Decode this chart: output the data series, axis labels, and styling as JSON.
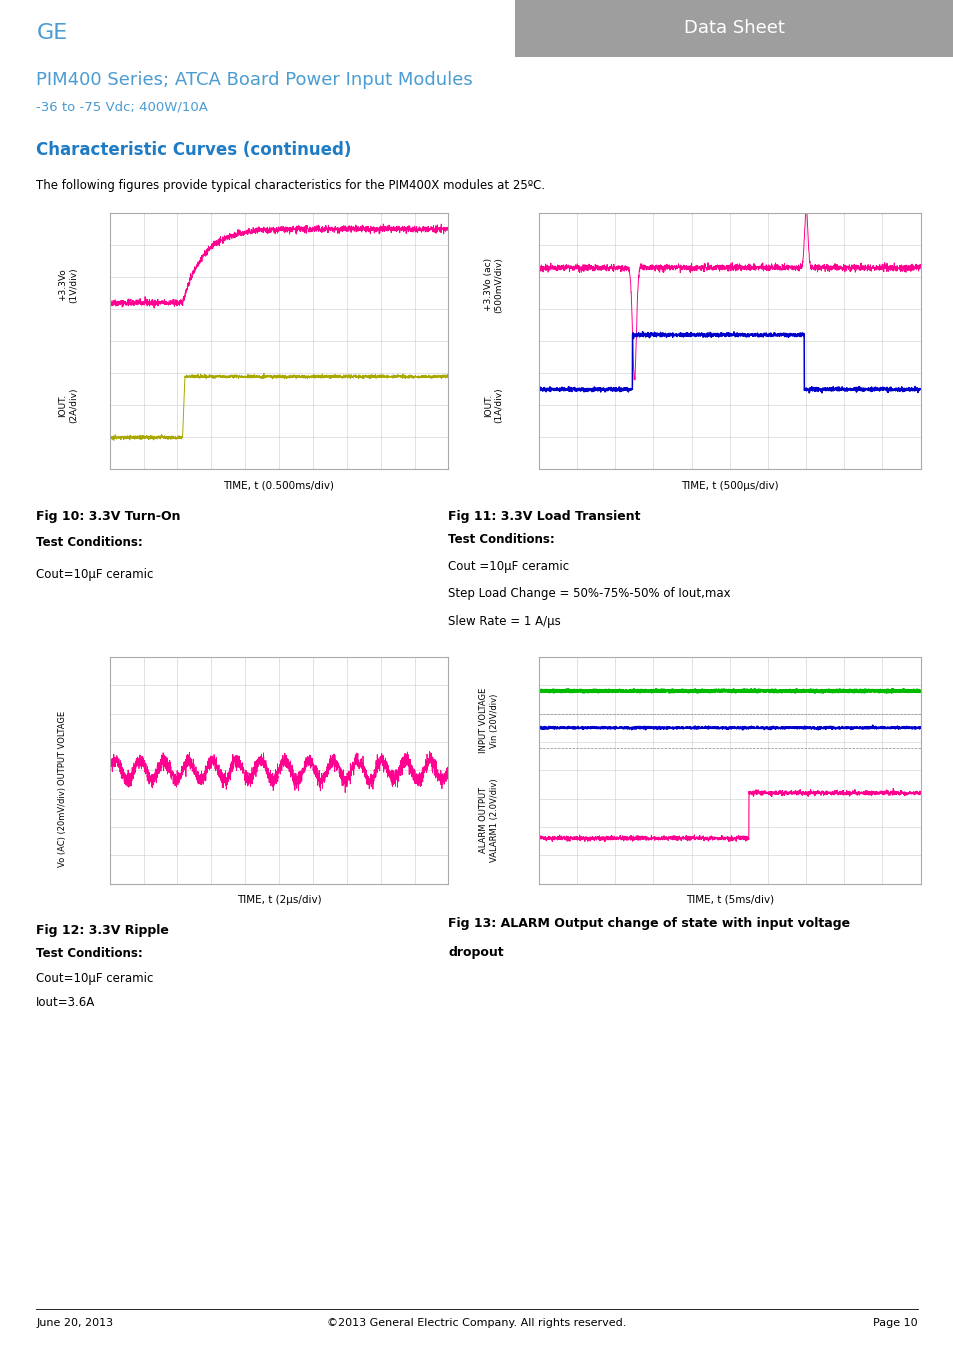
{
  "page_title": "GE",
  "datasheet_label": "Data Sheet",
  "product_title": "PIM400 Series; ATCA Board Power Input Modules",
  "product_subtitle": "-36 to -75 Vdc; 400W/10A",
  "section_title": "Characteristic Curves (continued)",
  "intro_text": "The following figures provide typical characteristics for the PIM400X modules at 25ºC.",
  "fig10_title": "Fig 10: 3.3V Turn-On",
  "fig10_xlabel": "TIME, t (0.500ms/div)",
  "fig10_ylabel_top": "+3.3Vo\n(1V/div)",
  "fig10_ylabel_bot": "IOUT.\n(2A/div)",
  "fig10_cond1": "Test Conditions:",
  "fig10_cond2": "Cout=10μF ceramic",
  "fig11_title": "Fig 11: 3.3V Load Transient",
  "fig11_xlabel": "TIME, t (500μs/div)",
  "fig11_ylabel_top": "+3.3Vo (ac)\n(500mV/div)",
  "fig11_ylabel_bot": "IOUT.\n(1A/div)",
  "fig11_cond1": "Test Conditions:",
  "fig11_cond2": "Cout =10μF ceramic",
  "fig11_cond3": "Step Load Change = 50%-75%-50% of Iout,max",
  "fig11_cond4": "Slew Rate = 1 A/μs",
  "fig12_title": "Fig 12: 3.3V Ripple",
  "fig12_xlabel": "TIME, t (2μs/div)",
  "fig12_ylabel_top": "OUTPUT VOLTAGE",
  "fig12_ylabel_bot": "Vo (AC) (20mV/div)",
  "fig12_cond1": "Test Conditions:",
  "fig12_cond2": "Cout=10μF ceramic",
  "fig12_cond3": "Iout=3.6A",
  "fig13_title": "Fig 13: ALARM Output change of state with input voltage",
  "fig13_title2": "dropout",
  "fig13_xlabel": "TIME, t (5ms/div)",
  "fig13_ylabel_top": "INPUT VOLTAGE",
  "fig13_ylabel_top2": "Vin (20V/div)",
  "fig13_ylabel_bot": "ALARM OUTPUT",
  "fig13_ylabel_bot2": "VALARM1 (2.0V/div)",
  "footer_left": "June 20, 2013",
  "footer_center": "©2013 General Electric Company. All rights reserved.",
  "footer_right": "Page 10",
  "color_ge_blue": "#4B9CD3",
  "color_header_gray": "#9E9E9E",
  "color_section_blue": "#1E7BC4",
  "color_pink": "#FF0090",
  "color_yellow_green": "#A8A800",
  "color_blue_wave": "#0000CD",
  "color_green": "#00BB00",
  "color_grid": "#CCCCCC",
  "color_oscborder": "#AAAAAA"
}
